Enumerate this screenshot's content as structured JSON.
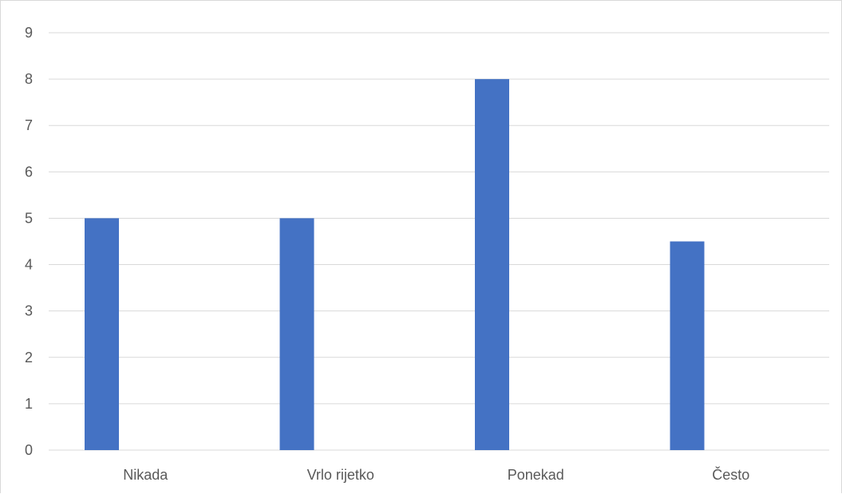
{
  "chart_data": {
    "type": "bar",
    "categories": [
      "Nikada",
      "Vrlo rijetko",
      "Ponekad",
      "Često"
    ],
    "values": [
      5,
      5,
      8,
      4.5
    ],
    "title": "",
    "xlabel": "",
    "ylabel": "",
    "ylim": [
      0,
      9
    ],
    "yticks": [
      "0",
      "1",
      "2",
      "3",
      "4",
      "5",
      "6",
      "7",
      "8",
      "9"
    ],
    "grid": true,
    "legend": "none",
    "bar_color": "#4472C4",
    "grid_color": "#d9d9d9",
    "text_color": "#595959"
  }
}
